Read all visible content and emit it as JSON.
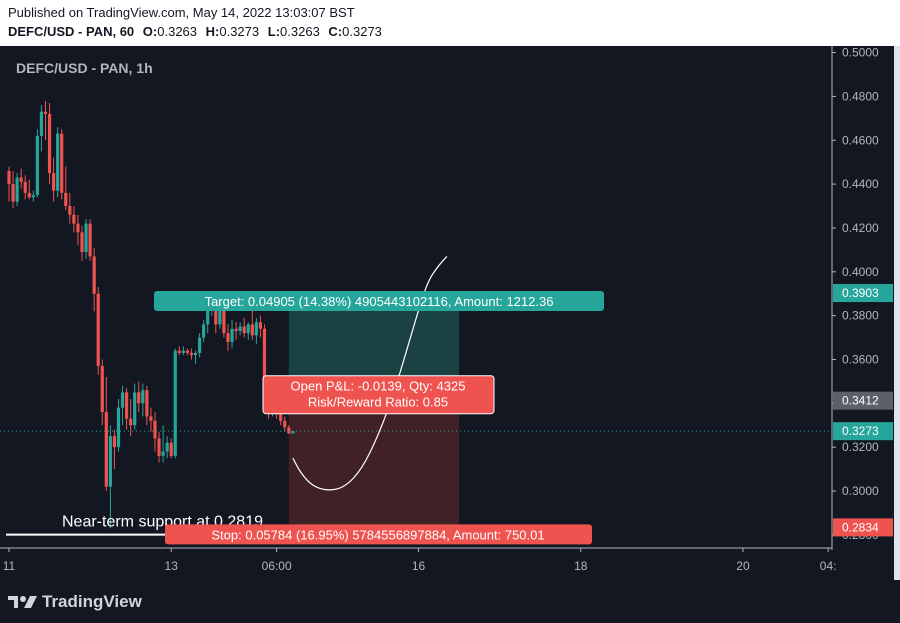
{
  "header": {
    "published": "Published on TradingView.com, May 14, 2022 13:03:07 BST",
    "symbol_line": "DEFC/USD - PAN, 60",
    "o_label": "O:",
    "o": "0.3263",
    "h_label": "H:",
    "h": "0.3273",
    "l_label": "L:",
    "l": "0.3263",
    "c_label": "C:",
    "c": "0.3273"
  },
  "chart": {
    "watermark": "DEFC/USD - PAN, 1h"
  },
  "footer": {
    "brand": "TradingView"
  },
  "colors": {
    "background": "#131722",
    "up": "#26a69a",
    "down": "#ef5350",
    "target_zone": "#1c4a48",
    "stop_zone": "#4a2329",
    "axis_text": "#b2b5be"
  },
  "chart_data": {
    "type": "candlestick",
    "title": "DEFC/USD - PAN, 1h",
    "ylim": [
      0.274,
      0.503
    ],
    "y_ticks": [
      "0.5000",
      "0.4800",
      "0.4600",
      "0.4400",
      "0.4200",
      "0.4000",
      "0.3800",
      "0.3600",
      "0.3400",
      "0.3200",
      "0.3000",
      "0.2800"
    ],
    "x_ticks": [
      {
        "label": "11",
        "index": 0
      },
      {
        "label": "13",
        "index": 40
      },
      {
        "label": "06:00",
        "index": 66
      },
      {
        "label": "16",
        "index": 101
      },
      {
        "label": "18",
        "index": 141
      },
      {
        "label": "20",
        "index": 181
      },
      {
        "label": "04:",
        "index": 202
      }
    ],
    "candles": [
      [
        0.446,
        0.448,
        0.432,
        0.44
      ],
      [
        0.44,
        0.446,
        0.429,
        0.432
      ],
      [
        0.432,
        0.445,
        0.43,
        0.443
      ],
      [
        0.443,
        0.447,
        0.438,
        0.441
      ],
      [
        0.441,
        0.444,
        0.433,
        0.436
      ],
      [
        0.436,
        0.442,
        0.433,
        0.434
      ],
      [
        0.434,
        0.437,
        0.432,
        0.435
      ],
      [
        0.435,
        0.465,
        0.434,
        0.462
      ],
      [
        0.462,
        0.476,
        0.455,
        0.473
      ],
      [
        0.473,
        0.478,
        0.46,
        0.472
      ],
      [
        0.472,
        0.477,
        0.44,
        0.445
      ],
      [
        0.445,
        0.452,
        0.432,
        0.437
      ],
      [
        0.437,
        0.466,
        0.434,
        0.463
      ],
      [
        0.463,
        0.465,
        0.433,
        0.436
      ],
      [
        0.436,
        0.448,
        0.428,
        0.43
      ],
      [
        0.43,
        0.436,
        0.422,
        0.426
      ],
      [
        0.426,
        0.43,
        0.418,
        0.422
      ],
      [
        0.422,
        0.426,
        0.412,
        0.418
      ],
      [
        0.418,
        0.421,
        0.405,
        0.409
      ],
      [
        0.409,
        0.424,
        0.406,
        0.422
      ],
      [
        0.422,
        0.424,
        0.405,
        0.407
      ],
      [
        0.407,
        0.411,
        0.382,
        0.39
      ],
      [
        0.39,
        0.393,
        0.353,
        0.357
      ],
      [
        0.357,
        0.36,
        0.33,
        0.336
      ],
      [
        0.336,
        0.352,
        0.3,
        0.302
      ],
      [
        0.302,
        0.33,
        0.283,
        0.325
      ],
      [
        0.325,
        0.328,
        0.31,
        0.32
      ],
      [
        0.32,
        0.342,
        0.318,
        0.338
      ],
      [
        0.338,
        0.348,
        0.33,
        0.345
      ],
      [
        0.345,
        0.347,
        0.328,
        0.333
      ],
      [
        0.333,
        0.342,
        0.325,
        0.33
      ],
      [
        0.33,
        0.349,
        0.328,
        0.345
      ],
      [
        0.345,
        0.35,
        0.336,
        0.34
      ],
      [
        0.34,
        0.349,
        0.334,
        0.346
      ],
      [
        0.346,
        0.348,
        0.33,
        0.334
      ],
      [
        0.334,
        0.338,
        0.327,
        0.332
      ],
      [
        0.332,
        0.336,
        0.318,
        0.324
      ],
      [
        0.324,
        0.327,
        0.313,
        0.316
      ],
      [
        0.316,
        0.33,
        0.313,
        0.318
      ],
      [
        0.318,
        0.325,
        0.315,
        0.322
      ],
      [
        0.322,
        0.324,
        0.315,
        0.316
      ],
      [
        0.316,
        0.365,
        0.315,
        0.364
      ],
      [
        0.364,
        0.366,
        0.362,
        0.363
      ],
      [
        0.363,
        0.366,
        0.362,
        0.364
      ],
      [
        0.364,
        0.365,
        0.362,
        0.363
      ],
      [
        0.363,
        0.365,
        0.36,
        0.362
      ],
      [
        0.362,
        0.364,
        0.358,
        0.363
      ],
      [
        0.363,
        0.372,
        0.361,
        0.37
      ],
      [
        0.37,
        0.378,
        0.368,
        0.376
      ],
      [
        0.376,
        0.386,
        0.372,
        0.384
      ],
      [
        0.384,
        0.39,
        0.38,
        0.388
      ],
      [
        0.388,
        0.389,
        0.372,
        0.376
      ],
      [
        0.376,
        0.387,
        0.374,
        0.383
      ],
      [
        0.383,
        0.385,
        0.37,
        0.372
      ],
      [
        0.372,
        0.376,
        0.364,
        0.368
      ],
      [
        0.368,
        0.378,
        0.365,
        0.374
      ],
      [
        0.374,
        0.377,
        0.369,
        0.373
      ],
      [
        0.373,
        0.377,
        0.371,
        0.375
      ],
      [
        0.375,
        0.379,
        0.37,
        0.372
      ],
      [
        0.372,
        0.377,
        0.369,
        0.376
      ],
      [
        0.376,
        0.383,
        0.369,
        0.371
      ],
      [
        0.371,
        0.379,
        0.367,
        0.377
      ],
      [
        0.377,
        0.38,
        0.37,
        0.374
      ],
      [
        0.374,
        0.376,
        0.342,
        0.346
      ],
      [
        0.346,
        0.348,
        0.333,
        0.336
      ],
      [
        0.336,
        0.346,
        0.334,
        0.344
      ],
      [
        0.344,
        0.346,
        0.333,
        0.335
      ],
      [
        0.335,
        0.338,
        0.33,
        0.332
      ],
      [
        0.332,
        0.334,
        0.327,
        0.329
      ],
      [
        0.329,
        0.33,
        0.326,
        0.3263
      ],
      [
        0.3263,
        0.3273,
        0.3263,
        0.3273
      ]
    ],
    "current_price": "0.3273",
    "price_labels": [
      {
        "value": 0.3903,
        "label": "0.3903",
        "color": "#26a69a"
      },
      {
        "value": 0.3412,
        "label": "0.3412",
        "color": "#5d606b"
      },
      {
        "value": 0.3273,
        "label": "0.3273",
        "color": "#26a69a"
      },
      {
        "value": 0.2834,
        "label": "0.2834",
        "color": "#ef5350"
      }
    ],
    "support": {
      "value": 0.2819,
      "text": "Near-term support at 0.2819"
    },
    "position": {
      "entry": 0.3412,
      "target": 0.3903,
      "stop": 0.2834,
      "start_index": 69,
      "end_index": 111,
      "target_text": "Target: 0.04905 (14.38%) 4905443102116, Amount: 1212.36",
      "stop_text": "Stop: 0.05784 (16.95%) 5784556897884, Amount: 750.01",
      "pnl_text": "Open P&L: -0.0139, Qty: 4325",
      "rr_text": "Risk/Reward Ratio: 0.85"
    },
    "projection_curve": [
      [
        70,
        0.315
      ],
      [
        72,
        0.308
      ],
      [
        75,
        0.302
      ],
      [
        79,
        0.3
      ],
      [
        83,
        0.302
      ],
      [
        87,
        0.31
      ],
      [
        91,
        0.325
      ],
      [
        95,
        0.345
      ],
      [
        99,
        0.37
      ],
      [
        103,
        0.395
      ],
      [
        106,
        0.403
      ],
      [
        108,
        0.407
      ]
    ]
  }
}
